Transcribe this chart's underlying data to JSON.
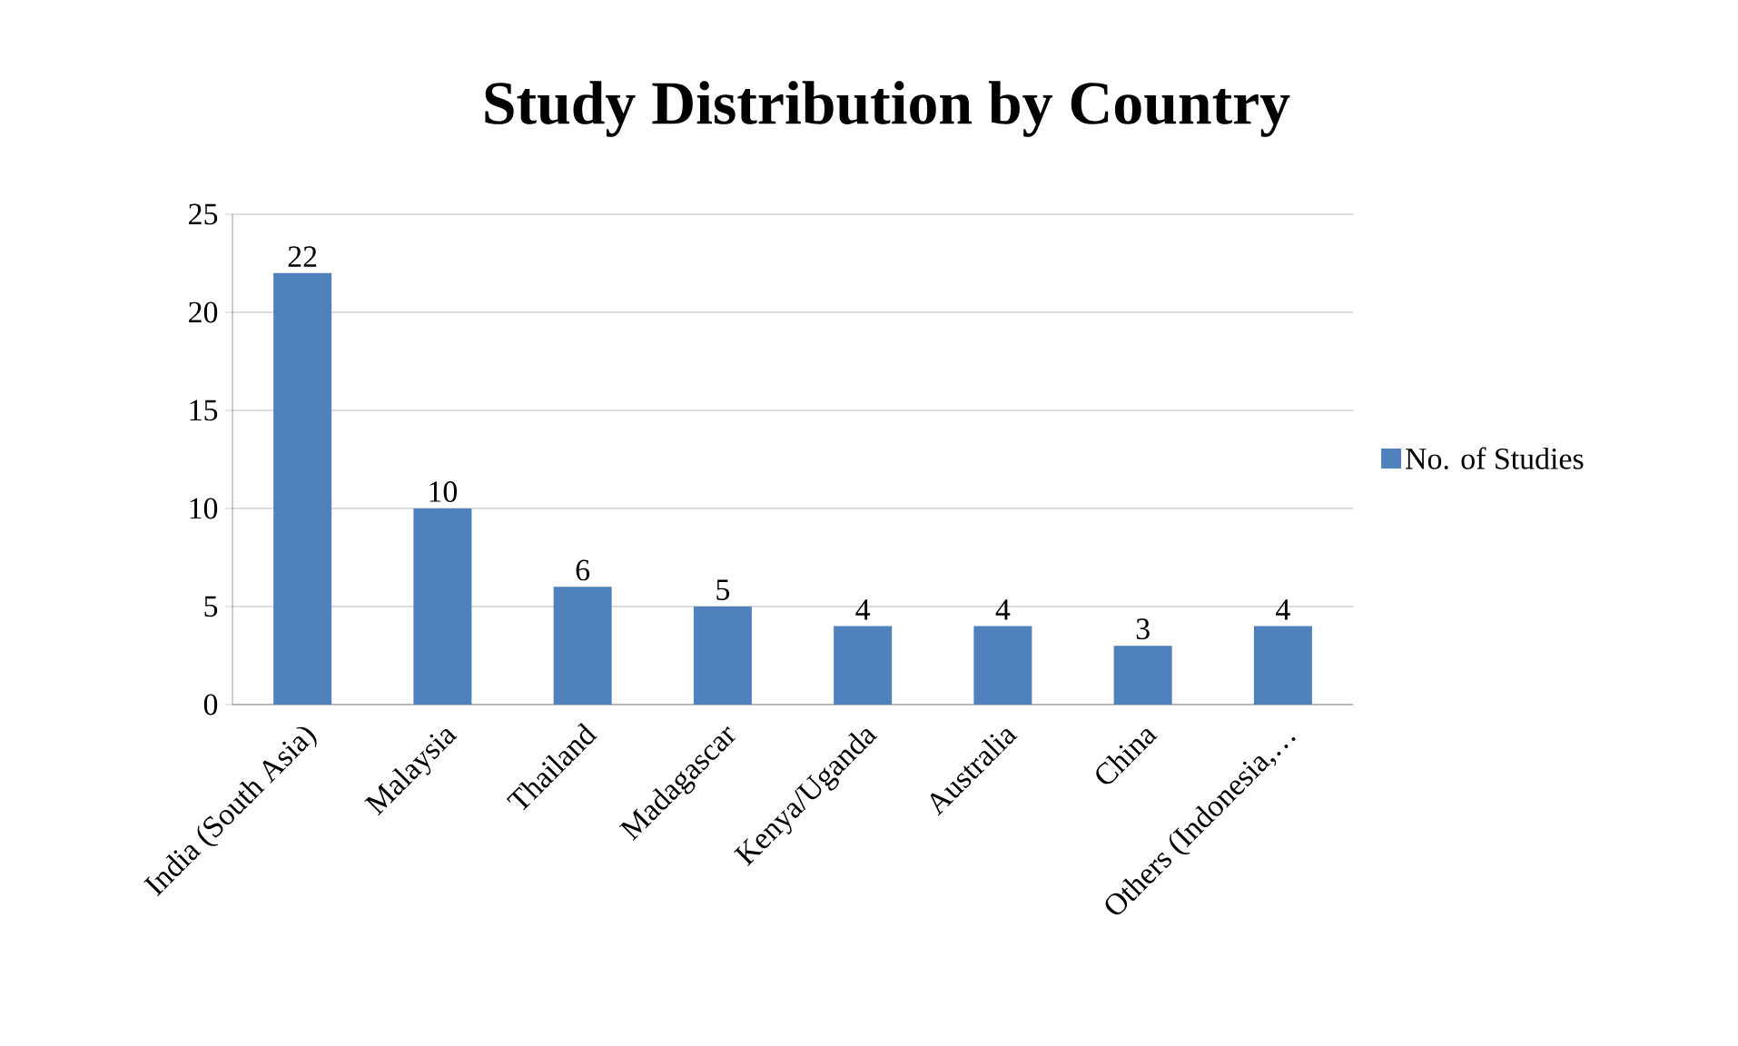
{
  "chart_data": {
    "type": "bar",
    "title": "Study Distribution by Country",
    "categories": [
      "India (South Asia)",
      "Malaysia",
      "Thailand",
      "Madagascar",
      "Kenya/Uganda",
      "Australia",
      "China",
      "Others (Indonesia,…"
    ],
    "series": [
      {
        "name": "No. of Studies",
        "color": "#4f81bd",
        "values": [
          22,
          10,
          6,
          5,
          4,
          4,
          3,
          4
        ]
      }
    ],
    "ylim": [
      0,
      25
    ],
    "yticks": [
      0,
      5,
      10,
      15,
      20,
      25
    ],
    "grid": "y",
    "legend": "right",
    "data_labels": true
  }
}
